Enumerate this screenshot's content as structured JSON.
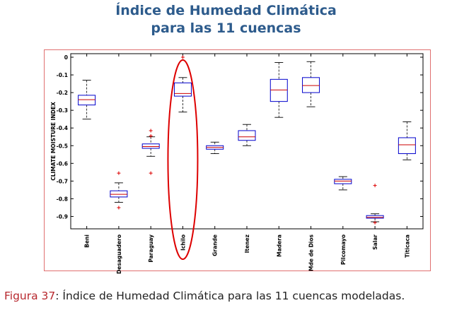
{
  "header": {
    "title_line1": "Índice de Humedad Climática",
    "title_line2": "para las 11 cuencas"
  },
  "caption": {
    "label": "Figura 37",
    "text": ": Índice de Humedad Climática para las 11 cuencas modeladas."
  },
  "colors": {
    "title": "#2d5b8c",
    "box": "#0000cc",
    "median": "#cc0000",
    "outlier": "#dd0000",
    "whisker": "#000000",
    "highlight_ellipse": "#dd0000",
    "frame": "#e07070",
    "caption_label": "#b7282e"
  },
  "chart_data": {
    "type": "boxplot",
    "ylabel": "CLIMATE MOISTURE INDEX",
    "ylim": [
      -0.97,
      0.02
    ],
    "yticks": [
      "0",
      "-0.1",
      "-0.2",
      "-0.3",
      "-0.4",
      "-0.5",
      "-0.6",
      "-0.7",
      "-0.8",
      "-0.9"
    ],
    "ytick_values": [
      0,
      -0.1,
      -0.2,
      -0.3,
      -0.4,
      -0.5,
      -0.6,
      -0.7,
      -0.8,
      -0.9
    ],
    "grid": false,
    "highlighted_category": "Ichilo",
    "categories": [
      "Beni",
      "Desaguadero",
      "Paraguay",
      "Ichilo",
      "Grande",
      "Itenez",
      "Madera",
      "Mde de Dios",
      "Pilcomayo",
      "Salar",
      "Titicaca"
    ],
    "boxes": [
      {
        "category": "Beni",
        "whisker_low": -0.35,
        "q1": -0.27,
        "median": -0.24,
        "q3": -0.215,
        "whisker_high": -0.13,
        "outliers": []
      },
      {
        "category": "Desaguadero",
        "whisker_low": -0.82,
        "q1": -0.79,
        "median": -0.775,
        "q3": -0.755,
        "whisker_high": -0.71,
        "outliers": [
          -0.655,
          -0.85
        ]
      },
      {
        "category": "Paraguay",
        "whisker_low": -0.56,
        "q1": -0.515,
        "median": -0.505,
        "q3": -0.49,
        "whisker_high": -0.45,
        "outliers": [
          -0.415,
          -0.445,
          -0.655
        ]
      },
      {
        "category": "Ichilo",
        "whisker_low": -0.31,
        "q1": -0.22,
        "median": -0.205,
        "q3": -0.145,
        "whisker_high": -0.115,
        "outliers": [
          0.0
        ]
      },
      {
        "category": "Grande",
        "whisker_low": -0.545,
        "q1": -0.52,
        "median": -0.51,
        "q3": -0.5,
        "whisker_high": -0.48,
        "outliers": []
      },
      {
        "category": "Itenez",
        "whisker_low": -0.5,
        "q1": -0.47,
        "median": -0.45,
        "q3": -0.415,
        "whisker_high": -0.38,
        "outliers": []
      },
      {
        "category": "Madera",
        "whisker_low": -0.34,
        "q1": -0.25,
        "median": -0.185,
        "q3": -0.125,
        "whisker_high": -0.03,
        "outliers": []
      },
      {
        "category": "Mde de Dios",
        "whisker_low": -0.28,
        "q1": -0.2,
        "median": -0.16,
        "q3": -0.115,
        "whisker_high": -0.025,
        "outliers": []
      },
      {
        "category": "Pilcomayo",
        "whisker_low": -0.75,
        "q1": -0.715,
        "median": -0.7,
        "q3": -0.69,
        "whisker_high": -0.675,
        "outliers": []
      },
      {
        "category": "Salar",
        "whisker_low": -0.93,
        "q1": -0.91,
        "median": -0.905,
        "q3": -0.895,
        "whisker_high": -0.885,
        "outliers": [
          -0.725,
          -0.935
        ]
      },
      {
        "category": "Titicaca",
        "whisker_low": -0.58,
        "q1": -0.545,
        "median": -0.495,
        "q3": -0.455,
        "whisker_high": -0.365,
        "outliers": []
      }
    ]
  }
}
